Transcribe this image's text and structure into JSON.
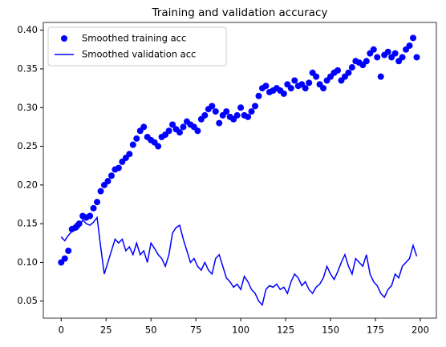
{
  "chart_data": {
    "type": "line",
    "title": "Training and validation accuracy",
    "xlim": [
      -9.95,
      208.95
    ],
    "ylim": [
      0.028,
      0.41
    ],
    "xticks": [
      0,
      25,
      50,
      75,
      100,
      125,
      150,
      175,
      200
    ],
    "yticks": [
      0.05,
      {
        "value": 0.1,
        "label": "0.10"
      },
      0.15,
      {
        "value": 0.2,
        "label": "0.20"
      },
      0.25,
      {
        "value": 0.3,
        "label": "0.30"
      },
      0.35,
      {
        "value": 0.4,
        "label": "0.40"
      }
    ],
    "legend": "upper left",
    "x": [
      0,
      2,
      4,
      6,
      8,
      10,
      12,
      14,
      16,
      18,
      20,
      22,
      24,
      26,
      28,
      30,
      32,
      34,
      36,
      38,
      40,
      42,
      44,
      46,
      48,
      50,
      52,
      54,
      56,
      58,
      60,
      62,
      64,
      66,
      68,
      70,
      72,
      74,
      76,
      78,
      80,
      82,
      84,
      86,
      88,
      90,
      92,
      94,
      96,
      98,
      100,
      102,
      104,
      106,
      108,
      110,
      112,
      114,
      116,
      118,
      120,
      122,
      124,
      126,
      128,
      130,
      132,
      134,
      136,
      138,
      140,
      142,
      144,
      146,
      148,
      150,
      152,
      154,
      156,
      158,
      160,
      162,
      164,
      166,
      168,
      170,
      172,
      174,
      176,
      178,
      180,
      182,
      184,
      186,
      188,
      190,
      192,
      194,
      196,
      198
    ],
    "series": [
      {
        "name": "Smoothed training acc",
        "color": "#0000ff",
        "mode": "points",
        "values": [
          0.1,
          0.105,
          0.115,
          0.143,
          0.145,
          0.15,
          0.16,
          0.158,
          0.16,
          0.17,
          0.178,
          0.192,
          0.2,
          0.205,
          0.212,
          0.22,
          0.222,
          0.23,
          0.235,
          0.24,
          0.252,
          0.26,
          0.27,
          0.275,
          0.262,
          0.258,
          0.255,
          0.25,
          0.262,
          0.265,
          0.27,
          0.278,
          0.272,
          0.268,
          0.275,
          0.282,
          0.278,
          0.275,
          0.27,
          0.285,
          0.29,
          0.298,
          0.302,
          0.295,
          0.28,
          0.29,
          0.295,
          0.288,
          0.285,
          0.29,
          0.3,
          0.29,
          0.288,
          0.295,
          0.302,
          0.315,
          0.325,
          0.328,
          0.32,
          0.322,
          0.325,
          0.322,
          0.318,
          0.33,
          0.325,
          0.335,
          0.328,
          0.33,
          0.325,
          0.332,
          0.345,
          0.34,
          0.33,
          0.325,
          0.335,
          0.34,
          0.345,
          0.348,
          0.335,
          0.34,
          0.345,
          0.352,
          0.36,
          0.358,
          0.355,
          0.36,
          0.37,
          0.375,
          0.365,
          0.34,
          0.368,
          0.372,
          0.365,
          0.37,
          0.36,
          0.365,
          0.375,
          0.38,
          0.39,
          0.365
        ]
      },
      {
        "name": "Smoothed validation acc",
        "color": "#0000ff",
        "mode": "line",
        "values": [
          0.133,
          0.128,
          0.135,
          0.14,
          0.15,
          0.145,
          0.155,
          0.15,
          0.148,
          0.152,
          0.158,
          0.12,
          0.085,
          0.1,
          0.115,
          0.13,
          0.125,
          0.13,
          0.115,
          0.12,
          0.11,
          0.125,
          0.11,
          0.115,
          0.1,
          0.125,
          0.118,
          0.11,
          0.105,
          0.095,
          0.11,
          0.138,
          0.145,
          0.148,
          0.13,
          0.115,
          0.1,
          0.105,
          0.095,
          0.09,
          0.1,
          0.09,
          0.085,
          0.105,
          0.11,
          0.095,
          0.08,
          0.075,
          0.068,
          0.072,
          0.065,
          0.082,
          0.075,
          0.065,
          0.06,
          0.05,
          0.045,
          0.065,
          0.07,
          0.068,
          0.072,
          0.065,
          0.068,
          0.06,
          0.075,
          0.085,
          0.08,
          0.07,
          0.075,
          0.065,
          0.06,
          0.068,
          0.072,
          0.08,
          0.095,
          0.085,
          0.078,
          0.088,
          0.1,
          0.11,
          0.095,
          0.085,
          0.105,
          0.1,
          0.095,
          0.11,
          0.085,
          0.075,
          0.07,
          0.06,
          0.055,
          0.065,
          0.07,
          0.085,
          0.08,
          0.095,
          0.1,
          0.105,
          0.122,
          0.108
        ]
      }
    ]
  }
}
